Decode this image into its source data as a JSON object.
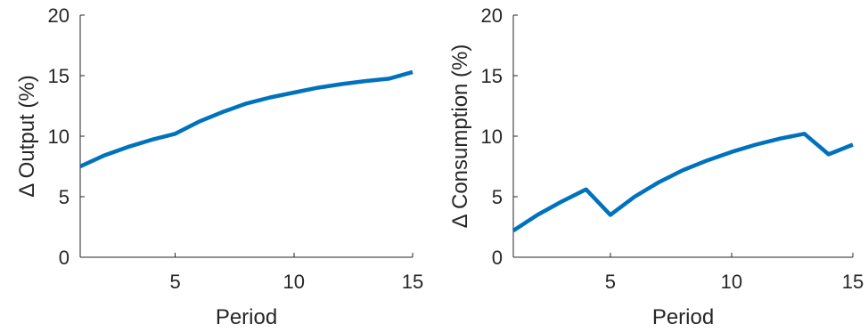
{
  "chart_data": [
    {
      "type": "line",
      "xlabel": "Period",
      "ylabel": "Δ Output (%)",
      "xlim": [
        1,
        15
      ],
      "ylim": [
        0,
        20
      ],
      "xticks": [
        5,
        10,
        15
      ],
      "yticks": [
        0,
        5,
        10,
        15,
        20
      ],
      "grid": false,
      "series": [
        {
          "color": "#0072BD",
          "x": [
            1,
            2,
            3,
            4,
            5,
            6,
            7,
            8,
            9,
            10,
            11,
            12,
            13,
            14,
            15
          ],
          "values": [
            7.5,
            8.4,
            9.1,
            9.7,
            10.2,
            11.2,
            12.0,
            12.7,
            13.2,
            13.6,
            14.0,
            14.3,
            14.55,
            14.75,
            15.3
          ]
        }
      ]
    },
    {
      "type": "line",
      "xlabel": "Period",
      "ylabel": "Δ Consumption (%)",
      "xlim": [
        1,
        15
      ],
      "ylim": [
        0,
        20
      ],
      "xticks": [
        5,
        10,
        15
      ],
      "yticks": [
        0,
        5,
        10,
        15,
        20
      ],
      "grid": false,
      "series": [
        {
          "color": "#0072BD",
          "x": [
            1,
            2,
            3,
            4,
            5,
            6,
            7,
            8,
            9,
            10,
            11,
            12,
            13,
            14,
            15
          ],
          "values": [
            2.2,
            3.5,
            4.6,
            5.6,
            3.5,
            5.0,
            6.2,
            7.2,
            8.0,
            8.7,
            9.3,
            9.8,
            10.2,
            8.5,
            9.3
          ]
        }
      ]
    }
  ]
}
